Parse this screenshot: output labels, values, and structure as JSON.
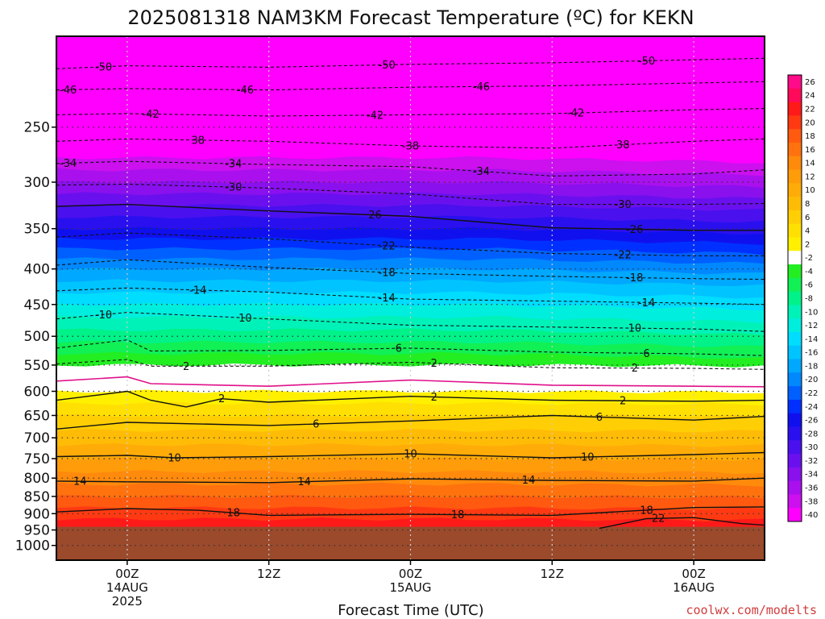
{
  "title": "2025081318 NAM3KM Forecast Temperature (ºC) for KEKN",
  "credit": "coolwx.com/modelts",
  "colors": {
    "ground": "#9b4a2c",
    "freezing_line": "#e0108a",
    "contour": "#111111",
    "gridline": "#9a9a9a"
  },
  "chart_data": {
    "type": "heatmap",
    "title": "2025081318 NAM3KM Forecast Temperature (ºC) for KEKN",
    "xlabel": "Forecast Time (UTC)",
    "ylabel": "",
    "y_scale": "log-pressure",
    "ylim": [
      1050,
      185
    ],
    "xlim_hours": [
      -6,
      54
    ],
    "y_ticks": [
      250,
      300,
      350,
      400,
      450,
      500,
      550,
      600,
      650,
      700,
      750,
      800,
      850,
      900,
      950,
      1000
    ],
    "x_ticks": [
      {
        "hour": 0,
        "lines": [
          "00Z",
          "14AUG",
          "2025"
        ]
      },
      {
        "hour": 12,
        "lines": [
          "12Z"
        ]
      },
      {
        "hour": 24,
        "lines": [
          "00Z",
          "15AUG"
        ]
      },
      {
        "hour": 36,
        "lines": [
          "12Z"
        ]
      },
      {
        "hour": 48,
        "lines": [
          "00Z",
          "16AUG"
        ]
      }
    ],
    "surface_pressure": 940,
    "colorbar_labels": [
      "26",
      "24",
      "22",
      "20",
      "18",
      "16",
      "14",
      "12",
      "10",
      "8",
      "6",
      "4",
      "2",
      "-2",
      "-4",
      "-6",
      "-8",
      "-10",
      "-12",
      "-14",
      "-16",
      "-18",
      "-20",
      "-22",
      "-24",
      "-26",
      "-28",
      "-30",
      "-32",
      "-34",
      "-36",
      "-38",
      "-40"
    ],
    "colorbar_colors": [
      "#ff0a88",
      "#ff0a5a",
      "#ff1a1a",
      "#ff3a12",
      "#ff5a10",
      "#ff720e",
      "#ff8a0c",
      "#ff9c0a",
      "#ffac08",
      "#ffbc06",
      "#ffce04",
      "#ffe002",
      "#fff000",
      "#ffffff",
      "#22ee22",
      "#11f055",
      "#00f288",
      "#00f2b8",
      "#00eedd",
      "#00ddff",
      "#00c4ff",
      "#00a8ff",
      "#0088ff",
      "#0060ff",
      "#0030ff",
      "#1010ee",
      "#2a10ee",
      "#4a10ee",
      "#6a10ee",
      "#8a10ee",
      "#aa10ee",
      "#cc10ee",
      "#ff00ff"
    ],
    "temperature_profile_anchors": [
      {
        "pressure": 200,
        "temp": -54
      },
      {
        "pressure": 250,
        "temp": -43
      },
      {
        "pressure": 300,
        "temp": -34
      },
      {
        "pressure": 350,
        "temp": -26
      },
      {
        "pressure": 400,
        "temp": -18
      },
      {
        "pressure": 450,
        "temp": -12
      },
      {
        "pressure": 500,
        "temp": -7
      },
      {
        "pressure": 550,
        "temp": -2
      },
      {
        "pressure": 580,
        "temp": 0
      },
      {
        "pressure": 600,
        "temp": 2
      },
      {
        "pressure": 650,
        "temp": 6
      },
      {
        "pressure": 700,
        "temp": 9
      },
      {
        "pressure": 750,
        "temp": 12
      },
      {
        "pressure": 800,
        "temp": 15
      },
      {
        "pressure": 850,
        "temp": 18
      },
      {
        "pressure": 900,
        "temp": 21
      },
      {
        "pressure": 950,
        "temp": 24
      }
    ],
    "contours": [
      {
        "value": -50,
        "style": "dashed",
        "points": [
          [
            -6,
            206
          ],
          [
            0,
            204
          ],
          [
            12,
            205
          ],
          [
            24,
            203
          ],
          [
            36,
            202
          ],
          [
            48,
            200
          ],
          [
            54,
            199
          ]
        ],
        "labels": [
          [
            -2,
            "-50"
          ],
          [
            22,
            "-50"
          ],
          [
            44,
            "-50"
          ]
        ]
      },
      {
        "value": -46,
        "style": "dashed",
        "points": [
          [
            -6,
            221
          ],
          [
            0,
            220
          ],
          [
            12,
            221
          ],
          [
            24,
            219
          ],
          [
            36,
            218
          ],
          [
            48,
            216
          ],
          [
            54,
            215
          ]
        ],
        "labels": [
          [
            -5,
            "-46"
          ],
          [
            10,
            "-46"
          ],
          [
            30,
            "-46"
          ]
        ]
      },
      {
        "value": -42,
        "style": "dashed",
        "points": [
          [
            -6,
            240
          ],
          [
            0,
            239
          ],
          [
            12,
            241
          ],
          [
            24,
            240
          ],
          [
            36,
            239
          ],
          [
            48,
            236
          ],
          [
            54,
            235
          ]
        ],
        "labels": [
          [
            2,
            "-42"
          ],
          [
            21,
            "-42"
          ],
          [
            38,
            "-42"
          ]
        ]
      },
      {
        "value": -38,
        "style": "dashed",
        "points": [
          [
            -6,
            262
          ],
          [
            0,
            260
          ],
          [
            12,
            262
          ],
          [
            24,
            266
          ],
          [
            36,
            268
          ],
          [
            48,
            262
          ],
          [
            54,
            260
          ]
        ],
        "labels": [
          [
            6,
            "38"
          ],
          [
            24,
            "-38"
          ],
          [
            42,
            "38"
          ]
        ]
      },
      {
        "value": -34,
        "style": "dashed",
        "points": [
          [
            -6,
            282
          ],
          [
            0,
            280
          ],
          [
            12,
            283
          ],
          [
            24,
            285
          ],
          [
            36,
            294
          ],
          [
            48,
            292
          ],
          [
            54,
            288
          ]
        ],
        "labels": [
          [
            -5,
            "-34"
          ],
          [
            9,
            "-34"
          ],
          [
            30,
            "-34"
          ]
        ]
      },
      {
        "value": -30,
        "style": "dashed",
        "points": [
          [
            -6,
            303
          ],
          [
            0,
            302
          ],
          [
            12,
            306
          ],
          [
            24,
            312
          ],
          [
            36,
            323
          ],
          [
            48,
            323
          ],
          [
            54,
            322
          ]
        ],
        "labels": [
          [
            9,
            "-30"
          ],
          [
            42,
            "-30"
          ]
        ]
      },
      {
        "value": -26,
        "style": "solid",
        "points": [
          [
            -6,
            325
          ],
          [
            0,
            323
          ],
          [
            12,
            330
          ],
          [
            24,
            336
          ],
          [
            36,
            349
          ],
          [
            48,
            352
          ],
          [
            54,
            352
          ]
        ],
        "labels": [
          [
            21,
            "26"
          ],
          [
            43,
            "-26"
          ]
        ]
      },
      {
        "value": -22,
        "style": "dashed",
        "points": [
          [
            -6,
            360
          ],
          [
            0,
            355
          ],
          [
            12,
            362
          ],
          [
            24,
            372
          ],
          [
            36,
            380
          ],
          [
            48,
            383
          ],
          [
            54,
            383
          ]
        ],
        "labels": [
          [
            22,
            "-22"
          ],
          [
            42,
            "-22"
          ]
        ]
      },
      {
        "value": -18,
        "style": "dashed",
        "points": [
          [
            -6,
            395
          ],
          [
            0,
            388
          ],
          [
            12,
            398
          ],
          [
            24,
            406
          ],
          [
            36,
            410
          ],
          [
            48,
            413
          ],
          [
            54,
            414
          ]
        ],
        "labels": [
          [
            22,
            "-18"
          ],
          [
            43,
            "-18"
          ]
        ]
      },
      {
        "value": -14,
        "style": "dashed",
        "points": [
          [
            -6,
            430
          ],
          [
            0,
            426
          ],
          [
            12,
            432
          ],
          [
            24,
            442
          ],
          [
            36,
            445
          ],
          [
            48,
            448
          ],
          [
            54,
            450
          ]
        ],
        "labels": [
          [
            6,
            "-14"
          ],
          [
            22,
            "-14"
          ],
          [
            44,
            "-14"
          ]
        ]
      },
      {
        "value": -10,
        "style": "dashed",
        "points": [
          [
            -6,
            472
          ],
          [
            0,
            462
          ],
          [
            12,
            472
          ],
          [
            24,
            482
          ],
          [
            36,
            485
          ],
          [
            48,
            488
          ],
          [
            54,
            492
          ]
        ],
        "labels": [
          [
            -2,
            "-10"
          ],
          [
            10,
            "10"
          ],
          [
            43,
            "10"
          ]
        ]
      },
      {
        "value": -6,
        "style": "dashed",
        "points": [
          [
            -6,
            520
          ],
          [
            0,
            506
          ],
          [
            2,
            525
          ],
          [
            12,
            524
          ],
          [
            24,
            520
          ],
          [
            36,
            527
          ],
          [
            48,
            530
          ],
          [
            54,
            533
          ]
        ],
        "labels": [
          [
            23,
            "6"
          ],
          [
            44,
            "6"
          ]
        ]
      },
      {
        "value": -2,
        "style": "dashed",
        "points": [
          [
            -6,
            548
          ],
          [
            0,
            540
          ],
          [
            2,
            552
          ],
          [
            12,
            552
          ],
          [
            24,
            545
          ],
          [
            36,
            555
          ],
          [
            48,
            556
          ],
          [
            54,
            558
          ]
        ],
        "labels": [
          [
            5,
            "2"
          ],
          [
            26,
            "2"
          ],
          [
            43,
            "2"
          ]
        ]
      },
      {
        "value": 0,
        "style": "pink",
        "points": [
          [
            -6,
            580
          ],
          [
            0,
            572
          ],
          [
            2,
            585
          ],
          [
            12,
            590
          ],
          [
            24,
            578
          ],
          [
            36,
            588
          ],
          [
            48,
            590
          ],
          [
            54,
            591
          ]
        ],
        "labels": []
      },
      {
        "value": 2,
        "style": "solid",
        "points": [
          [
            -6,
            618
          ],
          [
            0,
            600
          ],
          [
            2,
            618
          ],
          [
            5,
            632
          ],
          [
            8,
            615
          ],
          [
            12,
            622
          ],
          [
            24,
            610
          ],
          [
            36,
            618
          ],
          [
            48,
            620
          ],
          [
            54,
            618
          ]
        ],
        "labels": [
          [
            8,
            "2"
          ],
          [
            26,
            "2"
          ],
          [
            42,
            "2"
          ]
        ]
      },
      {
        "value": 6,
        "style": "solid",
        "points": [
          [
            -6,
            680
          ],
          [
            0,
            665
          ],
          [
            12,
            672
          ],
          [
            24,
            662
          ],
          [
            36,
            650
          ],
          [
            48,
            660
          ],
          [
            54,
            652
          ]
        ],
        "labels": [
          [
            16,
            "6"
          ],
          [
            40,
            "6"
          ]
        ]
      },
      {
        "value": 10,
        "style": "solid",
        "points": [
          [
            -6,
            745
          ],
          [
            0,
            742
          ],
          [
            4,
            748
          ],
          [
            12,
            745
          ],
          [
            24,
            738
          ],
          [
            36,
            748
          ],
          [
            48,
            740
          ],
          [
            54,
            735
          ]
        ],
        "labels": [
          [
            4,
            "10"
          ],
          [
            24,
            "10"
          ],
          [
            39,
            "10"
          ]
        ]
      },
      {
        "value": 14,
        "style": "solid",
        "points": [
          [
            -6,
            808
          ],
          [
            0,
            810
          ],
          [
            12,
            812
          ],
          [
            24,
            802
          ],
          [
            36,
            806
          ],
          [
            48,
            808
          ],
          [
            54,
            800
          ]
        ],
        "labels": [
          [
            -4,
            "14"
          ],
          [
            15,
            "14"
          ],
          [
            34,
            "14"
          ]
        ]
      },
      {
        "value": 18,
        "style": "solid",
        "points": [
          [
            -6,
            895
          ],
          [
            0,
            885
          ],
          [
            6,
            890
          ],
          [
            12,
            905
          ],
          [
            24,
            902
          ],
          [
            36,
            905
          ],
          [
            48,
            882
          ],
          [
            54,
            880
          ]
        ],
        "labels": [
          [
            9,
            "18"
          ],
          [
            28,
            "18"
          ],
          [
            44,
            "18"
          ]
        ]
      },
      {
        "value": 22,
        "style": "solid",
        "points": [
          [
            40,
            945
          ],
          [
            44,
            915
          ],
          [
            48,
            912
          ],
          [
            52,
            930
          ],
          [
            54,
            935
          ]
        ],
        "labels": [
          [
            45,
            "22"
          ]
        ]
      }
    ]
  }
}
